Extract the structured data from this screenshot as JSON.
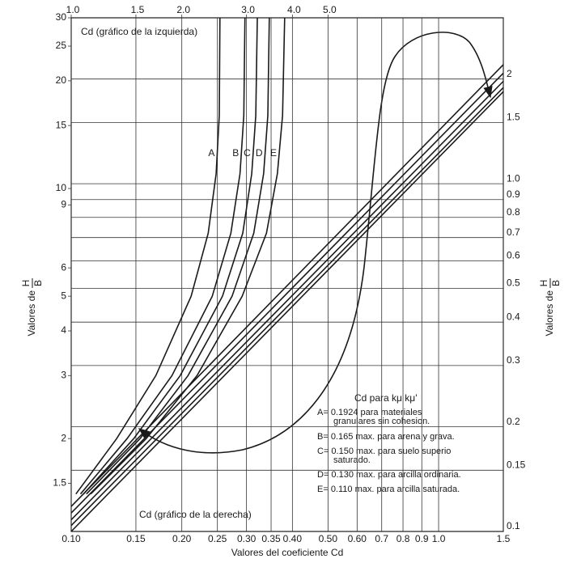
{
  "chart_data": {
    "type": "line",
    "xlabel": "Valores del coeficiente Cd",
    "ylabel": {
      "text": "Valores de",
      "num": "H",
      "den": "B"
    },
    "y2label": {
      "text": "Valores de",
      "num": "H",
      "den": "B"
    },
    "log_x": true,
    "log_y": true,
    "grid": true,
    "color": "#1a1a1a",
    "xlim": [
      0.1,
      1.5
    ],
    "xticks": [
      {
        "value": 0.1,
        "label": "0.10"
      },
      0.15,
      {
        "value": 0.2,
        "label": "0.20"
      },
      0.25,
      {
        "value": 0.3,
        "label": "0.30"
      },
      0.35,
      {
        "value": 0.4,
        "label": "0.40"
      },
      {
        "value": 0.5,
        "label": "0.50"
      },
      {
        "value": 0.6,
        "label": "0.60"
      },
      0.7,
      0.8,
      0.9,
      {
        "value": 1,
        "label": "1.0"
      },
      1.5
    ],
    "x2lim": [
      1,
      15
    ],
    "x2ticks": [
      {
        "value": 1,
        "label": "1.0"
      },
      1.5,
      {
        "value": 2,
        "label": "2.0"
      },
      {
        "value": 3,
        "label": "3.0"
      },
      {
        "value": 4,
        "label": "4.0"
      },
      {
        "value": 5,
        "label": "5.0"
      }
    ],
    "ylim": [
      1.1,
      30
    ],
    "yticks": [
      1.5,
      2,
      3,
      4,
      5,
      6,
      9,
      10,
      15,
      20,
      25,
      30
    ],
    "y2lim": [
      0.1,
      3
    ],
    "y2ticks": [
      0.1,
      0.15,
      0.2,
      0.3,
      0.4,
      0.5,
      0.6,
      0.7,
      0.8,
      0.9,
      {
        "value": 1,
        "label": "1.0"
      },
      1.5,
      2
    ],
    "annotations": {
      "left": "Cd (gráfico de la izquierda)",
      "right": "Cd (gráfico de la derecha)"
    },
    "notes": [
      "Cd para kμ kμ'",
      "A= 0.1924 para materiales",
      "granulares sin cohesion.",
      "B= 0.165 max. para arena y grava.",
      "C= 0.150 max. para suelo superio",
      "saturado.",
      "D= 0.130 max. para arcilla ordinaria.",
      "E= 0.110 max. para arcilla saturada."
    ],
    "series": [
      {
        "name": "A",
        "axis": "x2",
        "x": [
          1.03,
          1.33,
          1.7,
          2.12,
          2.36,
          2.48,
          2.53,
          2.54
        ],
        "y": [
          1.4,
          2,
          3,
          5,
          7.5,
          11,
          16,
          30
        ]
      },
      {
        "name": "B",
        "axis": "x2",
        "x": [
          1.06,
          1.42,
          1.88,
          2.42,
          2.72,
          2.88,
          2.95,
          2.97
        ],
        "y": [
          1.4,
          2,
          3,
          5,
          7.5,
          11,
          16,
          30
        ]
      },
      {
        "name": "C",
        "axis": "x2",
        "x": [
          1.08,
          1.48,
          1.98,
          2.58,
          2.93,
          3.1,
          3.18,
          3.21
        ],
        "y": [
          1.4,
          2,
          3,
          5,
          7.5,
          11,
          16,
          30
        ]
      },
      {
        "name": "D",
        "axis": "x2",
        "x": [
          1.1,
          1.54,
          2.08,
          2.74,
          3.14,
          3.34,
          3.43,
          3.46
        ],
        "y": [
          1.4,
          2,
          3,
          5,
          7.5,
          11,
          16,
          30
        ]
      },
      {
        "name": "E",
        "axis": "x2",
        "x": [
          1.13,
          1.6,
          2.2,
          2.92,
          3.4,
          3.64,
          3.76,
          3.81
        ],
        "y": [
          1.4,
          2,
          3,
          5,
          7.5,
          11,
          16,
          30
        ]
      },
      {
        "axis": "y2",
        "x": [
          0.1,
          1.5
        ],
        "y": [
          0.118,
          2.2
        ]
      },
      {
        "axis": "y2",
        "x": [
          0.1,
          1.5
        ],
        "y": [
          0.113,
          2.08
        ]
      },
      {
        "axis": "y2",
        "x": [
          0.1,
          1.5
        ],
        "y": [
          0.108,
          1.97
        ]
      },
      {
        "axis": "y2",
        "x": [
          0.1,
          1.5
        ],
        "y": [
          0.104,
          1.89
        ]
      },
      {
        "axis": "y2",
        "x": [
          0.1,
          1.5
        ],
        "y": [
          0.1,
          1.84
        ]
      }
    ]
  }
}
